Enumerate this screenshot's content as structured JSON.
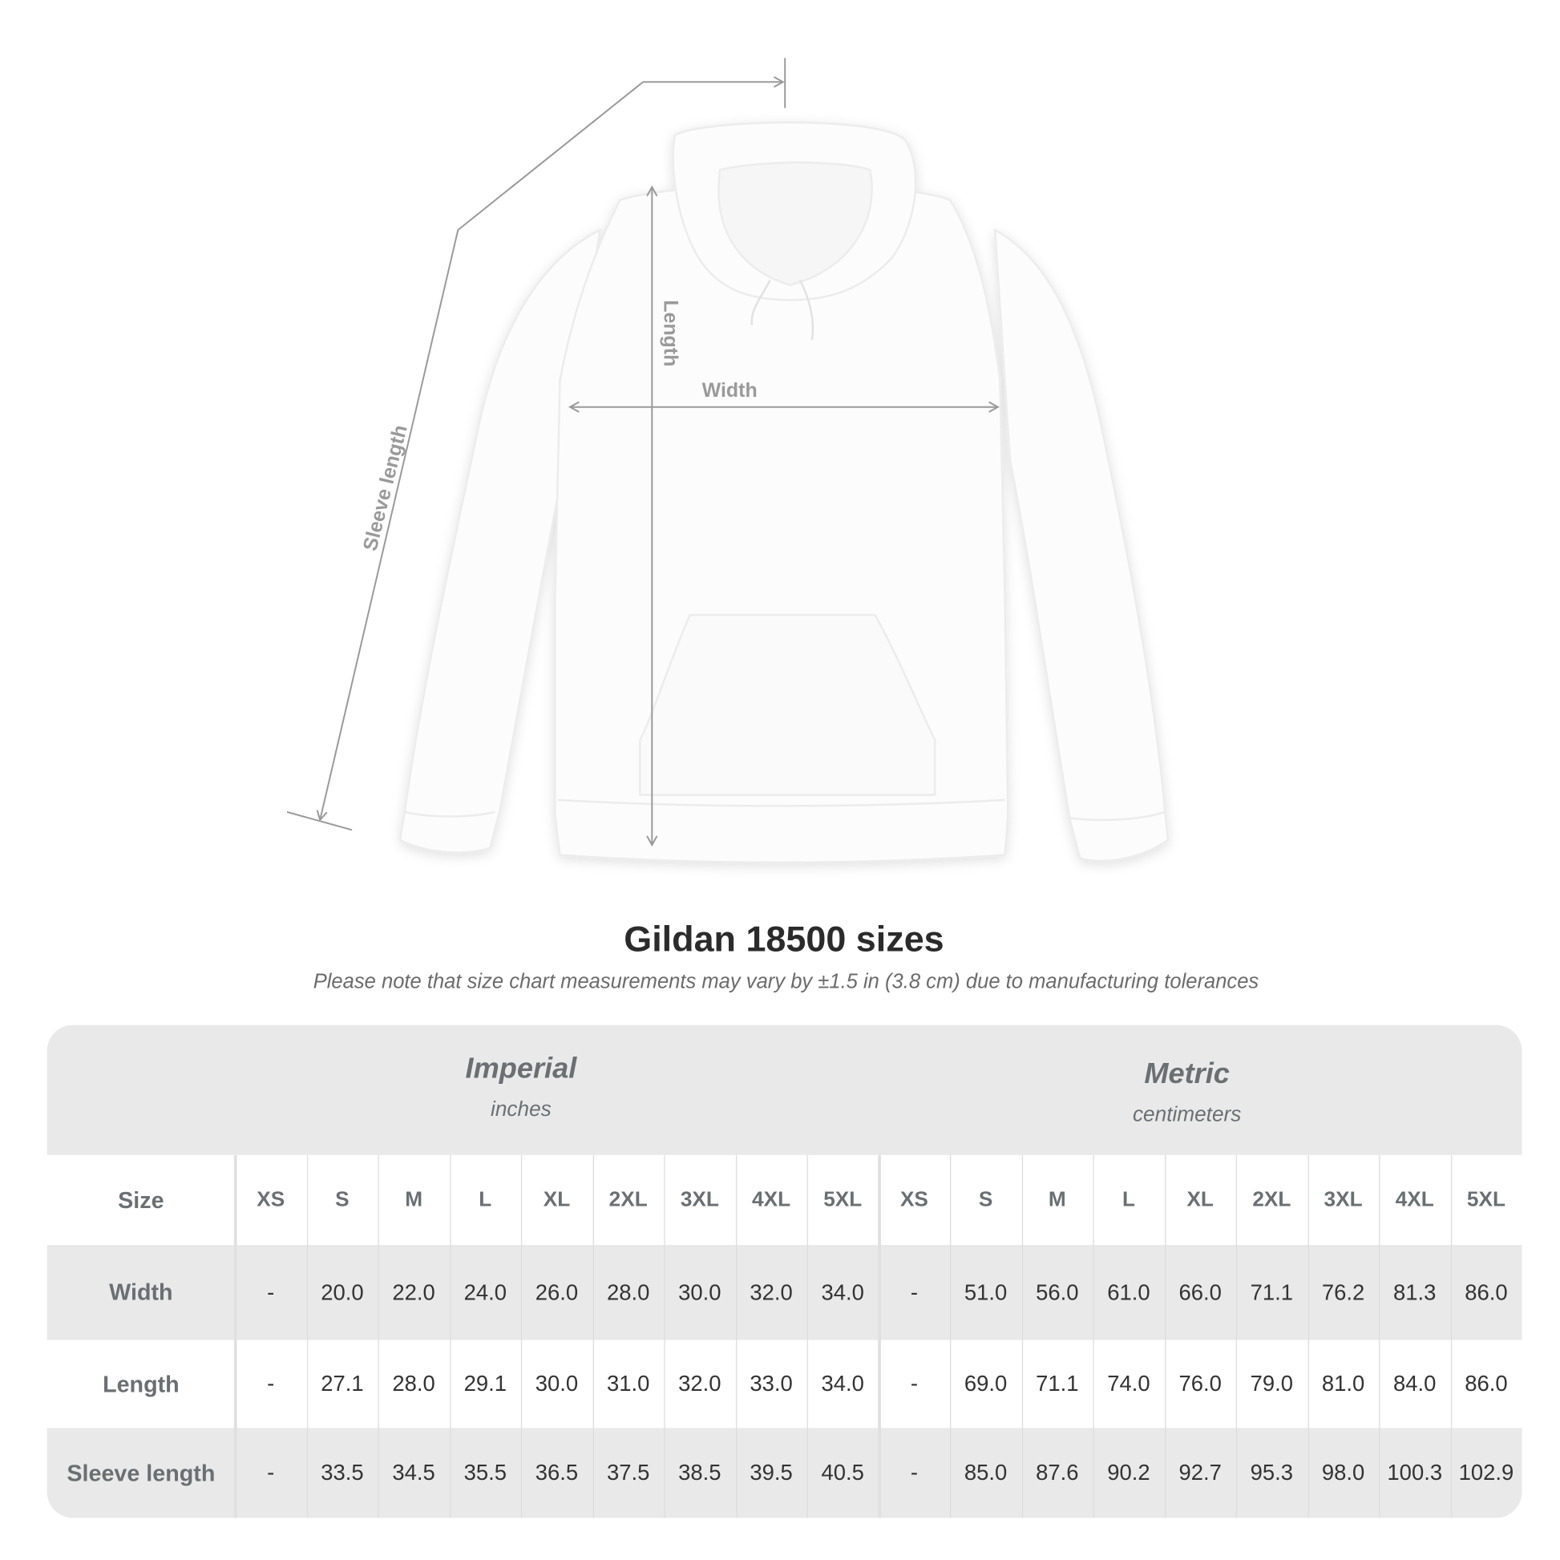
{
  "diagram": {
    "labels": {
      "sleeve": "Sleeve length",
      "length": "Length",
      "width": "Width"
    },
    "line_color": "#9a9a9a"
  },
  "title": "Gildan 18500 sizes",
  "note": "Please note that size chart measurements may vary by ±1.5 in (3.8 cm) due to manufacturing tolerances",
  "table": {
    "imperial": {
      "name": "Imperial",
      "unit": "inches"
    },
    "metric": {
      "name": "Metric",
      "unit": "centimeters"
    },
    "header_label": "Size",
    "sizes": [
      "XS",
      "S",
      "M",
      "L",
      "XL",
      "2XL",
      "3XL",
      "4XL",
      "5XL",
      "XS",
      "S",
      "M",
      "L",
      "XL",
      "2XL",
      "3XL",
      "4XL",
      "5XL"
    ],
    "rows": [
      {
        "label": "Width",
        "values": [
          "-",
          "20.0",
          "22.0",
          "24.0",
          "26.0",
          "28.0",
          "30.0",
          "32.0",
          "34.0",
          "-",
          "51.0",
          "56.0",
          "61.0",
          "66.0",
          "71.1",
          "76.2",
          "81.3",
          "86.0"
        ]
      },
      {
        "label": "Length",
        "values": [
          "-",
          "27.1",
          "28.0",
          "29.1",
          "30.0",
          "31.0",
          "32.0",
          "33.0",
          "34.0",
          "-",
          "69.0",
          "71.1",
          "74.0",
          "76.0",
          "79.0",
          "81.0",
          "84.0",
          "86.0"
        ]
      },
      {
        "label": "Sleeve length",
        "values": [
          "-",
          "33.5",
          "34.5",
          "35.5",
          "36.5",
          "37.5",
          "38.5",
          "39.5",
          "40.5",
          "-",
          "85.0",
          "87.6",
          "90.2",
          "92.7",
          "95.3",
          "98.0",
          "100.3",
          "102.9"
        ]
      }
    ],
    "colors": {
      "band": "#e9e9e9",
      "label_text": "#6a6f72"
    }
  }
}
